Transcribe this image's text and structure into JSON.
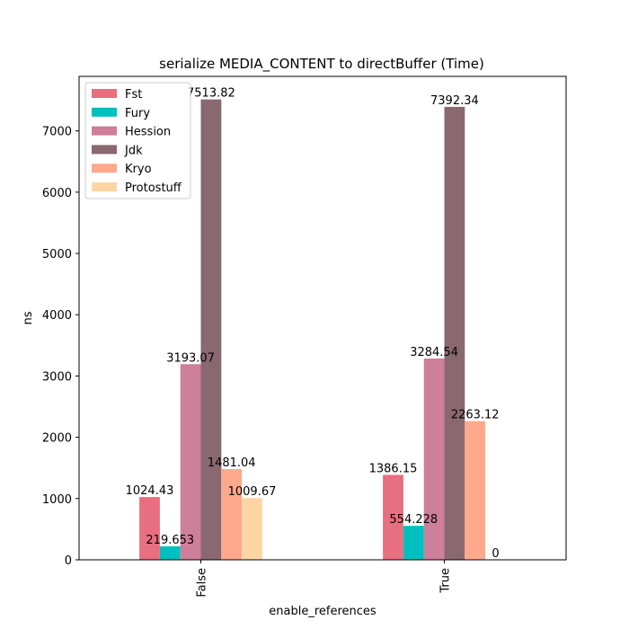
{
  "chart_data": {
    "type": "bar",
    "title": "serialize MEDIA_CONTENT to directBuffer (Time)",
    "xlabel": "enable_references",
    "ylabel": "ns",
    "categories": [
      "False",
      "True"
    ],
    "ylim": [
      0,
      7890
    ],
    "yticks": [
      0,
      1000,
      2000,
      3000,
      4000,
      5000,
      6000,
      7000
    ],
    "legend_position": "top-left",
    "series": [
      {
        "name": "Fst",
        "color": "#e76f80",
        "values": [
          1024.43,
          1386.15
        ],
        "labels": [
          "1024.43",
          "1386.15"
        ]
      },
      {
        "name": "Fury",
        "color": "#00bfbf",
        "values": [
          219.653,
          554.228
        ],
        "labels": [
          "219.653",
          "554.228"
        ]
      },
      {
        "name": "Hession",
        "color": "#ce7f9a",
        "values": [
          3193.07,
          3284.54
        ],
        "labels": [
          "3193.07",
          "3284.54"
        ]
      },
      {
        "name": "Jdk",
        "color": "#8a6870",
        "values": [
          7513.82,
          7392.34
        ],
        "labels": [
          "7513.82",
          "7392.34"
        ]
      },
      {
        "name": "Kryo",
        "color": "#ffa98c",
        "values": [
          1481.04,
          2263.12
        ],
        "labels": [
          "1481.04",
          "2263.12"
        ]
      },
      {
        "name": "Protostuff",
        "color": "#ffd5a6",
        "values": [
          1009.67,
          0
        ],
        "labels": [
          "1009.67",
          "0"
        ]
      }
    ]
  }
}
